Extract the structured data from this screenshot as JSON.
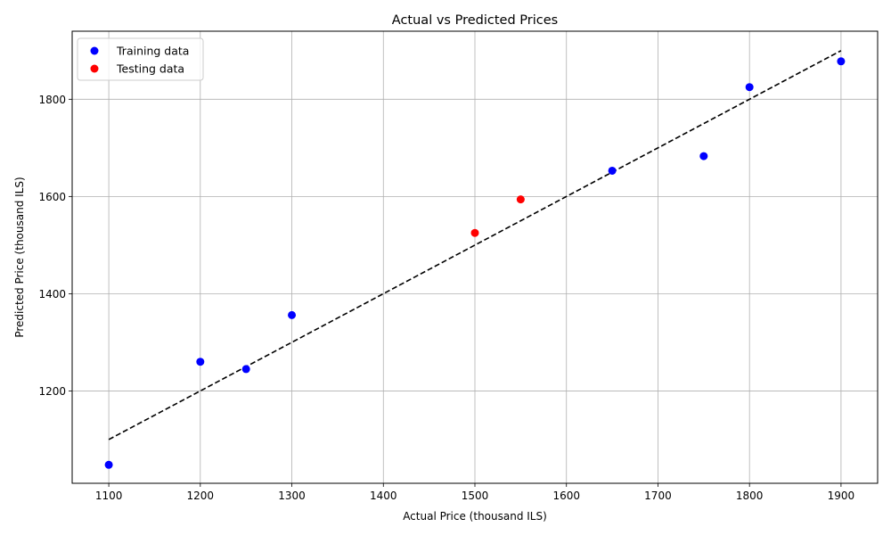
{
  "chart_data": {
    "type": "scatter",
    "title": "Actual vs Predicted Prices",
    "xlabel": "Actual Price (thousand ILS)",
    "ylabel": "Predicted Price (thousand ILS)",
    "xlim": [
      1060,
      1940
    ],
    "ylim": [
      1010,
      1940
    ],
    "xticks": [
      1100,
      1200,
      1300,
      1400,
      1500,
      1600,
      1700,
      1800,
      1900
    ],
    "yticks": [
      1200,
      1400,
      1600,
      1800
    ],
    "grid": true,
    "legend_position": "top-left",
    "series": [
      {
        "name": "Training data",
        "color": "#0000ff",
        "points": [
          {
            "x": 1100,
            "y": 1048
          },
          {
            "x": 1200,
            "y": 1260
          },
          {
            "x": 1250,
            "y": 1245
          },
          {
            "x": 1300,
            "y": 1356
          },
          {
            "x": 1650,
            "y": 1653
          },
          {
            "x": 1750,
            "y": 1683
          },
          {
            "x": 1800,
            "y": 1825
          },
          {
            "x": 1900,
            "y": 1878
          }
        ]
      },
      {
        "name": "Testing data",
        "color": "#ff0000",
        "points": [
          {
            "x": 1500,
            "y": 1525
          },
          {
            "x": 1550,
            "y": 1594
          }
        ]
      }
    ],
    "reference_line": {
      "style": "dashed",
      "color": "#000000",
      "from": [
        1100,
        1100
      ],
      "to": [
        1900,
        1900
      ]
    }
  }
}
